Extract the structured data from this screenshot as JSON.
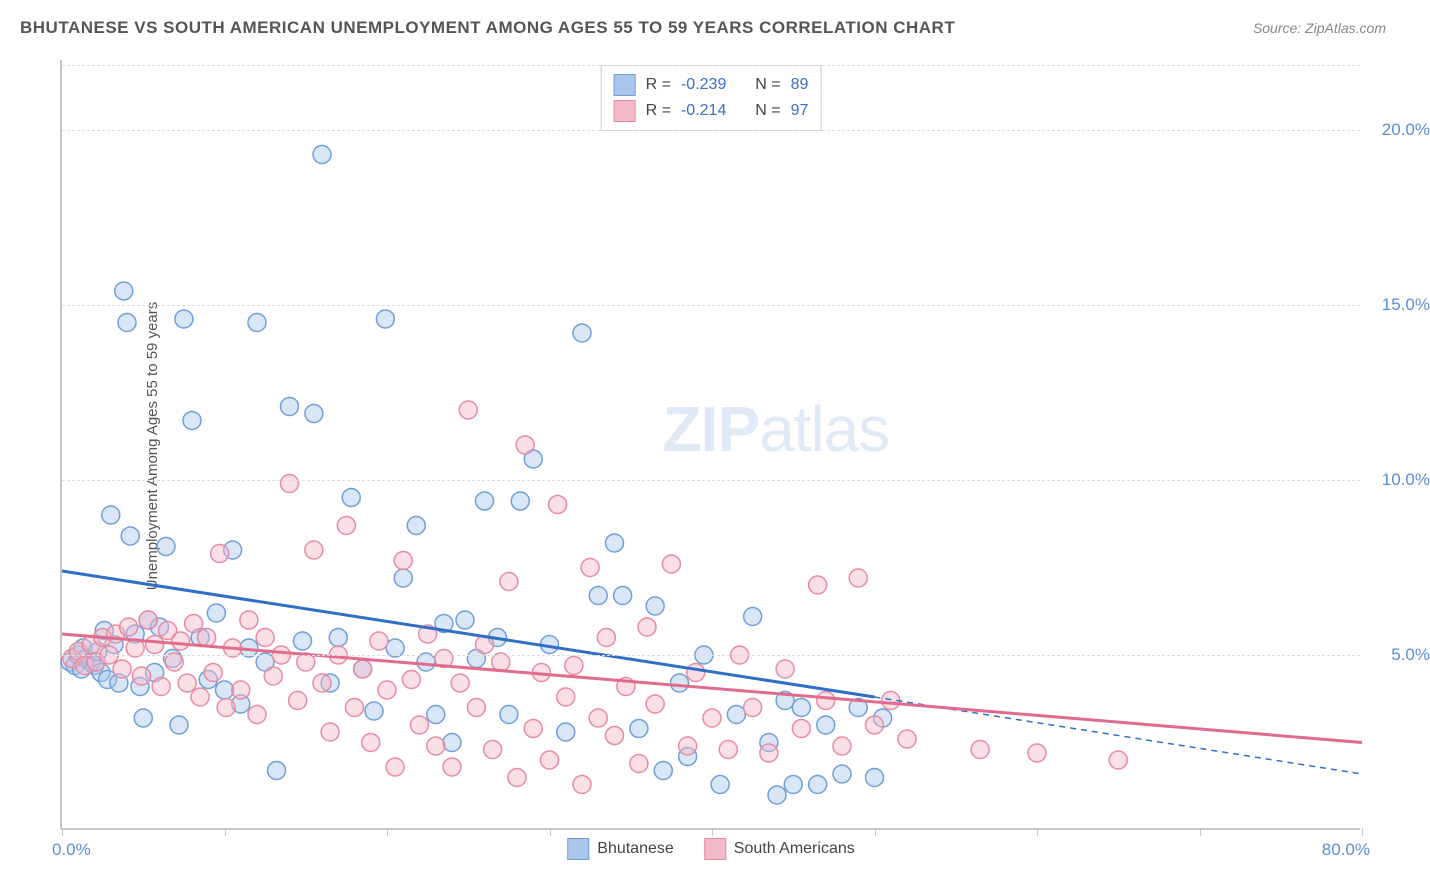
{
  "title": "BHUTANESE VS SOUTH AMERICAN UNEMPLOYMENT AMONG AGES 55 TO 59 YEARS CORRELATION CHART",
  "source": "Source: ZipAtlas.com",
  "ylabel": "Unemployment Among Ages 55 to 59 years",
  "watermark_zip": "ZIP",
  "watermark_atlas": "atlas",
  "chart": {
    "type": "scatter",
    "xlim": [
      0,
      80
    ],
    "ylim": [
      0,
      22
    ],
    "x_origin_label": "0.0%",
    "x_max_label": "80.0%",
    "x_ticks": [
      0,
      10,
      20,
      30,
      40,
      50,
      60,
      70,
      80
    ],
    "y_ticks": [
      {
        "v": 5,
        "label": "5.0%"
      },
      {
        "v": 10,
        "label": "10.0%"
      },
      {
        "v": 15,
        "label": "15.0%"
      },
      {
        "v": 20,
        "label": "20.0%"
      }
    ],
    "background_color": "#ffffff",
    "grid_color": "#dddddd",
    "axis_color": "#c7c7c7",
    "marker_radius": 9,
    "marker_opacity": 0.45,
    "line_width": 3,
    "series": [
      {
        "name": "Bhutanese",
        "fill": "#a9c7ec",
        "stroke": "#6f9fd8",
        "line_color": "#2f6fc4",
        "R": "-0.239",
        "N": "89",
        "trend": {
          "x1": 0,
          "y1": 7.4,
          "x2": 50,
          "y2": 3.8,
          "x_dash_to": 80,
          "y_dash_to": 1.6
        },
        "points": [
          [
            0.5,
            4.8
          ],
          [
            0.8,
            4.7
          ],
          [
            1.0,
            5.0
          ],
          [
            1.2,
            4.6
          ],
          [
            1.3,
            5.2
          ],
          [
            1.5,
            4.9
          ],
          [
            1.8,
            4.8
          ],
          [
            2.0,
            4.7
          ],
          [
            2.2,
            5.1
          ],
          [
            2.4,
            4.5
          ],
          [
            2.6,
            5.7
          ],
          [
            2.8,
            4.3
          ],
          [
            3.0,
            9.0
          ],
          [
            3.2,
            5.3
          ],
          [
            3.5,
            4.2
          ],
          [
            3.8,
            15.4
          ],
          [
            4.0,
            14.5
          ],
          [
            4.2,
            8.4
          ],
          [
            4.5,
            5.6
          ],
          [
            4.8,
            4.1
          ],
          [
            5.0,
            3.2
          ],
          [
            5.3,
            6.0
          ],
          [
            5.7,
            4.5
          ],
          [
            6.0,
            5.8
          ],
          [
            6.4,
            8.1
          ],
          [
            6.8,
            4.9
          ],
          [
            7.2,
            3.0
          ],
          [
            7.5,
            14.6
          ],
          [
            8.0,
            11.7
          ],
          [
            8.5,
            5.5
          ],
          [
            9.0,
            4.3
          ],
          [
            9.5,
            6.2
          ],
          [
            10.0,
            4.0
          ],
          [
            10.5,
            8.0
          ],
          [
            11.0,
            3.6
          ],
          [
            11.5,
            5.2
          ],
          [
            12.0,
            14.5
          ],
          [
            12.5,
            4.8
          ],
          [
            13.2,
            1.7
          ],
          [
            14.0,
            12.1
          ],
          [
            14.8,
            5.4
          ],
          [
            15.5,
            11.9
          ],
          [
            16.0,
            19.3
          ],
          [
            16.5,
            4.2
          ],
          [
            17.0,
            5.5
          ],
          [
            17.8,
            9.5
          ],
          [
            18.5,
            4.6
          ],
          [
            19.2,
            3.4
          ],
          [
            19.9,
            14.6
          ],
          [
            20.5,
            5.2
          ],
          [
            21.0,
            7.2
          ],
          [
            21.8,
            8.7
          ],
          [
            22.4,
            4.8
          ],
          [
            23.0,
            3.3
          ],
          [
            23.5,
            5.9
          ],
          [
            24.0,
            2.5
          ],
          [
            24.8,
            6.0
          ],
          [
            25.5,
            4.9
          ],
          [
            26.0,
            9.4
          ],
          [
            26.8,
            5.5
          ],
          [
            27.5,
            3.3
          ],
          [
            28.2,
            9.4
          ],
          [
            29.0,
            10.6
          ],
          [
            30.0,
            5.3
          ],
          [
            31.0,
            2.8
          ],
          [
            32.0,
            14.2
          ],
          [
            33.0,
            6.7
          ],
          [
            34.0,
            8.2
          ],
          [
            34.5,
            6.7
          ],
          [
            35.5,
            2.9
          ],
          [
            36.5,
            6.4
          ],
          [
            37.0,
            1.7
          ],
          [
            38.0,
            4.2
          ],
          [
            38.5,
            2.1
          ],
          [
            39.5,
            5.0
          ],
          [
            40.5,
            1.3
          ],
          [
            41.5,
            3.3
          ],
          [
            42.5,
            6.1
          ],
          [
            43.5,
            2.5
          ],
          [
            44.0,
            1.0
          ],
          [
            44.5,
            3.7
          ],
          [
            45.0,
            1.3
          ],
          [
            45.5,
            3.5
          ],
          [
            46.5,
            1.3
          ],
          [
            47.0,
            3.0
          ],
          [
            48.0,
            1.6
          ],
          [
            49.0,
            3.5
          ],
          [
            50.0,
            1.5
          ],
          [
            50.5,
            3.2
          ]
        ]
      },
      {
        "name": "South Americans",
        "fill": "#f4b9c8",
        "stroke": "#e78ba3",
        "line_color": "#e16b8c",
        "R": "-0.214",
        "N": "97",
        "trend": {
          "x1": 0,
          "y1": 5.6,
          "x2": 80,
          "y2": 2.5,
          "x_dash_to": 80,
          "y_dash_to": 2.5
        },
        "points": [
          [
            0.6,
            4.9
          ],
          [
            1.0,
            5.1
          ],
          [
            1.4,
            4.7
          ],
          [
            1.8,
            5.3
          ],
          [
            2.1,
            4.8
          ],
          [
            2.5,
            5.5
          ],
          [
            2.9,
            5.0
          ],
          [
            3.3,
            5.6
          ],
          [
            3.7,
            4.6
          ],
          [
            4.1,
            5.8
          ],
          [
            4.5,
            5.2
          ],
          [
            4.9,
            4.4
          ],
          [
            5.3,
            6.0
          ],
          [
            5.7,
            5.3
          ],
          [
            6.1,
            4.1
          ],
          [
            6.5,
            5.7
          ],
          [
            6.9,
            4.8
          ],
          [
            7.3,
            5.4
          ],
          [
            7.7,
            4.2
          ],
          [
            8.1,
            5.9
          ],
          [
            8.5,
            3.8
          ],
          [
            8.9,
            5.5
          ],
          [
            9.3,
            4.5
          ],
          [
            9.7,
            7.9
          ],
          [
            10.1,
            3.5
          ],
          [
            10.5,
            5.2
          ],
          [
            11.0,
            4.0
          ],
          [
            11.5,
            6.0
          ],
          [
            12.0,
            3.3
          ],
          [
            12.5,
            5.5
          ],
          [
            13.0,
            4.4
          ],
          [
            13.5,
            5.0
          ],
          [
            14.0,
            9.9
          ],
          [
            14.5,
            3.7
          ],
          [
            15.0,
            4.8
          ],
          [
            15.5,
            8.0
          ],
          [
            16.0,
            4.2
          ],
          [
            16.5,
            2.8
          ],
          [
            17.0,
            5.0
          ],
          [
            17.5,
            8.7
          ],
          [
            18.0,
            3.5
          ],
          [
            18.5,
            4.6
          ],
          [
            19.0,
            2.5
          ],
          [
            19.5,
            5.4
          ],
          [
            20.0,
            4.0
          ],
          [
            20.5,
            1.8
          ],
          [
            21.0,
            7.7
          ],
          [
            21.5,
            4.3
          ],
          [
            22.0,
            3.0
          ],
          [
            22.5,
            5.6
          ],
          [
            23.0,
            2.4
          ],
          [
            23.5,
            4.9
          ],
          [
            24.0,
            1.8
          ],
          [
            24.5,
            4.2
          ],
          [
            25.0,
            12.0
          ],
          [
            25.5,
            3.5
          ],
          [
            26.0,
            5.3
          ],
          [
            26.5,
            2.3
          ],
          [
            27.0,
            4.8
          ],
          [
            27.5,
            7.1
          ],
          [
            28.0,
            1.5
          ],
          [
            28.5,
            11.0
          ],
          [
            29.0,
            2.9
          ],
          [
            29.5,
            4.5
          ],
          [
            30.0,
            2.0
          ],
          [
            30.5,
            9.3
          ],
          [
            31.0,
            3.8
          ],
          [
            31.5,
            4.7
          ],
          [
            32.0,
            1.3
          ],
          [
            32.5,
            7.5
          ],
          [
            33.0,
            3.2
          ],
          [
            33.5,
            5.5
          ],
          [
            34.0,
            2.7
          ],
          [
            34.7,
            4.1
          ],
          [
            35.5,
            1.9
          ],
          [
            36.0,
            5.8
          ],
          [
            36.5,
            3.6
          ],
          [
            37.5,
            7.6
          ],
          [
            38.5,
            2.4
          ],
          [
            39.0,
            4.5
          ],
          [
            40.0,
            3.2
          ],
          [
            41.0,
            2.3
          ],
          [
            41.7,
            5.0
          ],
          [
            42.5,
            3.5
          ],
          [
            43.5,
            2.2
          ],
          [
            44.5,
            4.6
          ],
          [
            45.5,
            2.9
          ],
          [
            46.5,
            7.0
          ],
          [
            47.0,
            3.7
          ],
          [
            48.0,
            2.4
          ],
          [
            49.0,
            7.2
          ],
          [
            50.0,
            3.0
          ],
          [
            51.0,
            3.7
          ],
          [
            52.0,
            2.6
          ],
          [
            60.0,
            2.2
          ],
          [
            56.5,
            2.3
          ],
          [
            65.0,
            2.0
          ]
        ]
      }
    ]
  },
  "stats_labels": {
    "R": "R =",
    "N": "N ="
  },
  "legend": [
    {
      "label": "Bhutanese",
      "fill": "#a9c7ec",
      "stroke": "#6f9fd8"
    },
    {
      "label": "South Americans",
      "fill": "#f4b9c8",
      "stroke": "#e78ba3"
    }
  ]
}
